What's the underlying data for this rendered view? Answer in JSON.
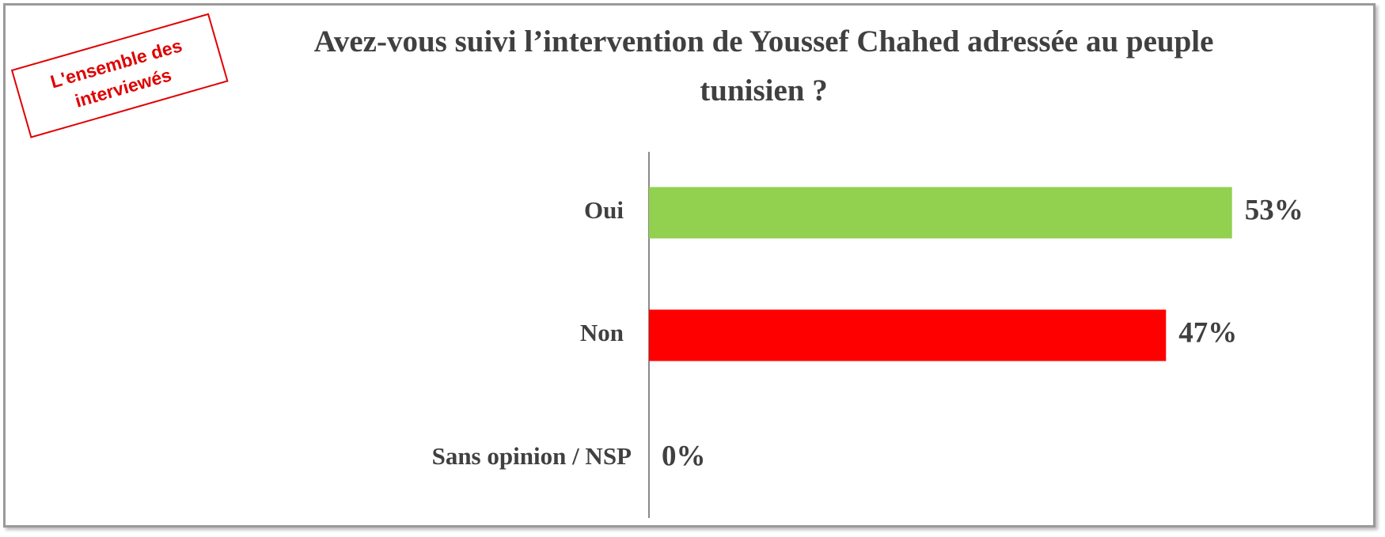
{
  "chart_data": {
    "type": "hbar",
    "title": "Avez-vous suivi l’intervention de Youssef Chahed adressée au peuple tunisien ?",
    "annotation": [
      "L'ensemble des",
      "interviewés"
    ],
    "categories": [
      "Oui",
      "Non",
      "Sans opinion / NSP"
    ],
    "values": [
      53,
      47,
      0
    ],
    "value_labels": [
      "53%",
      "47%",
      "0%"
    ],
    "colors": [
      "#92d050",
      "#ff0000",
      "#948a54"
    ],
    "xlim": [
      0,
      60
    ]
  }
}
